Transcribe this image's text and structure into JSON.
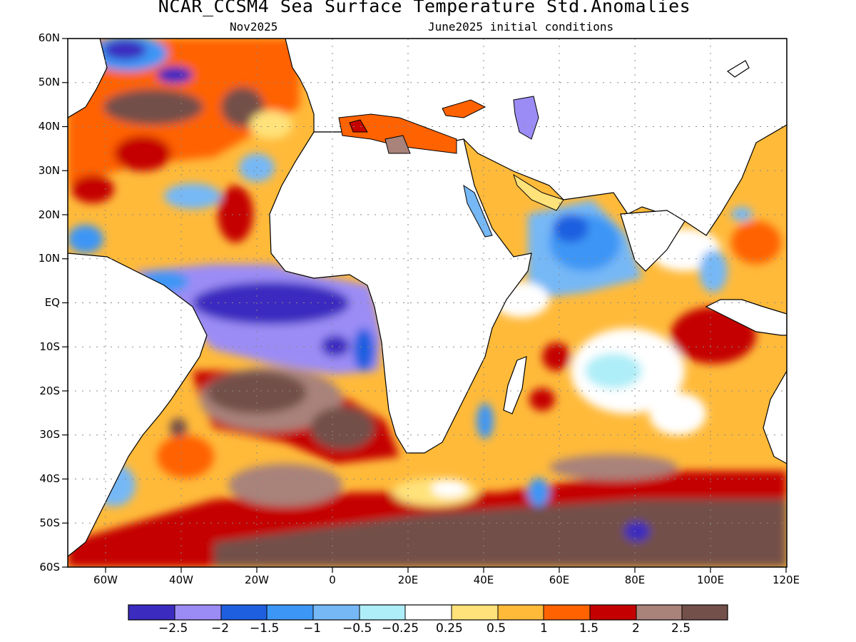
{
  "header": {
    "title": "NCAR_CCSM4 Sea Surface Temperature Std.Anomalies",
    "forecast_month": "Nov2025",
    "initial_conditions": "June2025 initial conditions"
  },
  "map": {
    "lat_labels": [
      "60N",
      "50N",
      "40N",
      "30N",
      "20N",
      "10N",
      "EQ",
      "10S",
      "20S",
      "30S",
      "40S",
      "50S",
      "60S"
    ],
    "lon_labels": [
      "60W",
      "40W",
      "20W",
      "0",
      "20E",
      "40E",
      "60E",
      "80E",
      "100E",
      "120E"
    ],
    "extent": {
      "lon": [
        -70,
        120
      ],
      "lat": [
        -60,
        60
      ]
    },
    "land_color": "#ffffff",
    "grid": "dotted"
  },
  "colorbar": {
    "colors": [
      "#3b2bbf",
      "#9b8cf5",
      "#1e5fe0",
      "#3c96f5",
      "#76b8f6",
      "#aeeef8",
      "#ffffff",
      "#ffe27a",
      "#ffba3a",
      "#ff6200",
      "#c40000",
      "#a9827a",
      "#73504a"
    ],
    "labels": [
      "−2.5",
      "−2",
      "−1.5",
      "−1",
      "−0.5",
      "−0.25",
      "0.25",
      "0.5",
      "1",
      "1.5",
      "2",
      "2.5"
    ]
  }
}
